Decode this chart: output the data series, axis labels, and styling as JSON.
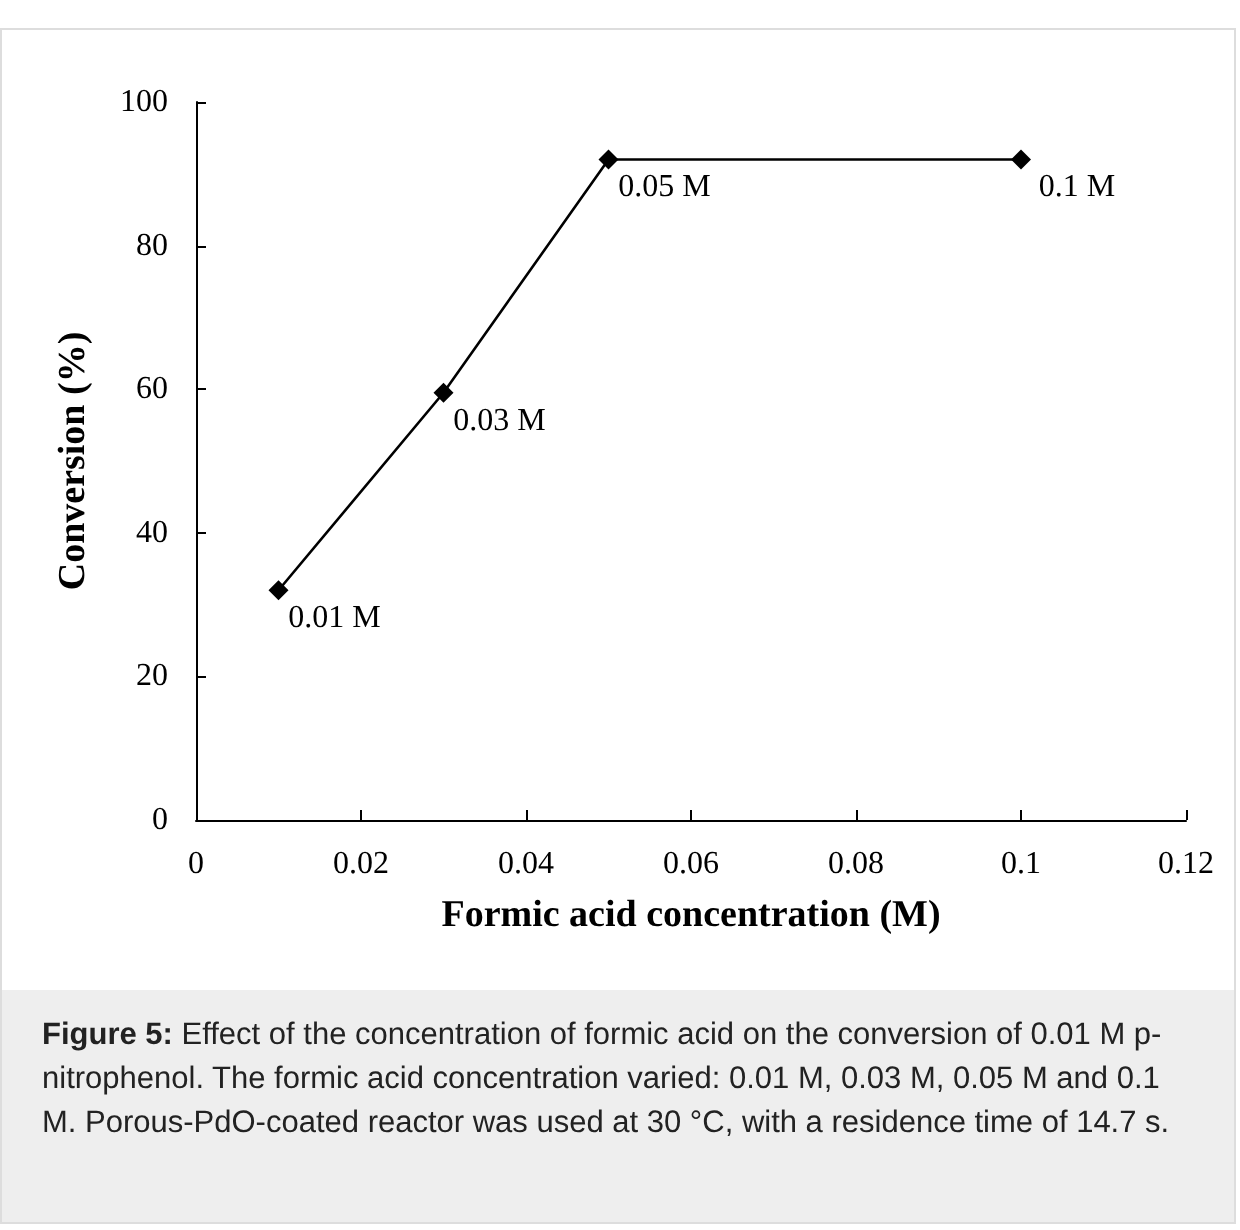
{
  "chart_data": {
    "type": "line",
    "xlabel": "Formic acid concentration (M)",
    "ylabel": "Conversion (%)",
    "x": [
      0.01,
      0.03,
      0.05,
      0.1
    ],
    "series": [
      {
        "color": "#000000",
        "values": [
          32,
          59.5,
          92,
          92
        ]
      }
    ],
    "xlim": [
      0,
      0.12
    ],
    "xticks": [
      0,
      0.02,
      0.04,
      0.06,
      0.08,
      0.1,
      0.12
    ],
    "ylim": [
      0,
      100
    ],
    "yticks": [
      0,
      20,
      40,
      60,
      80,
      100
    ],
    "marker": "diamond",
    "line_style": "solid",
    "annotations": [
      {
        "text": "0.01 M",
        "x": 0.01,
        "y": 32
      },
      {
        "text": "0.03 M",
        "x": 0.03,
        "y": 59.5
      },
      {
        "text": "0.05 M",
        "x": 0.05,
        "y": 92
      },
      {
        "text": "0.1 M",
        "x": 0.1,
        "y": 92
      },
      "Figure 5: Effect of the concentration of formic acid on the conversion of 0.01 M p-nitrophenol. The formic acid concentration varied: 0.01 M, 0.03 M, 0.05 M and 0.1 M. Porous-PdO-coated reactor was used at 30 °C, with a residence time of 14.7 s."
    ]
  }
}
